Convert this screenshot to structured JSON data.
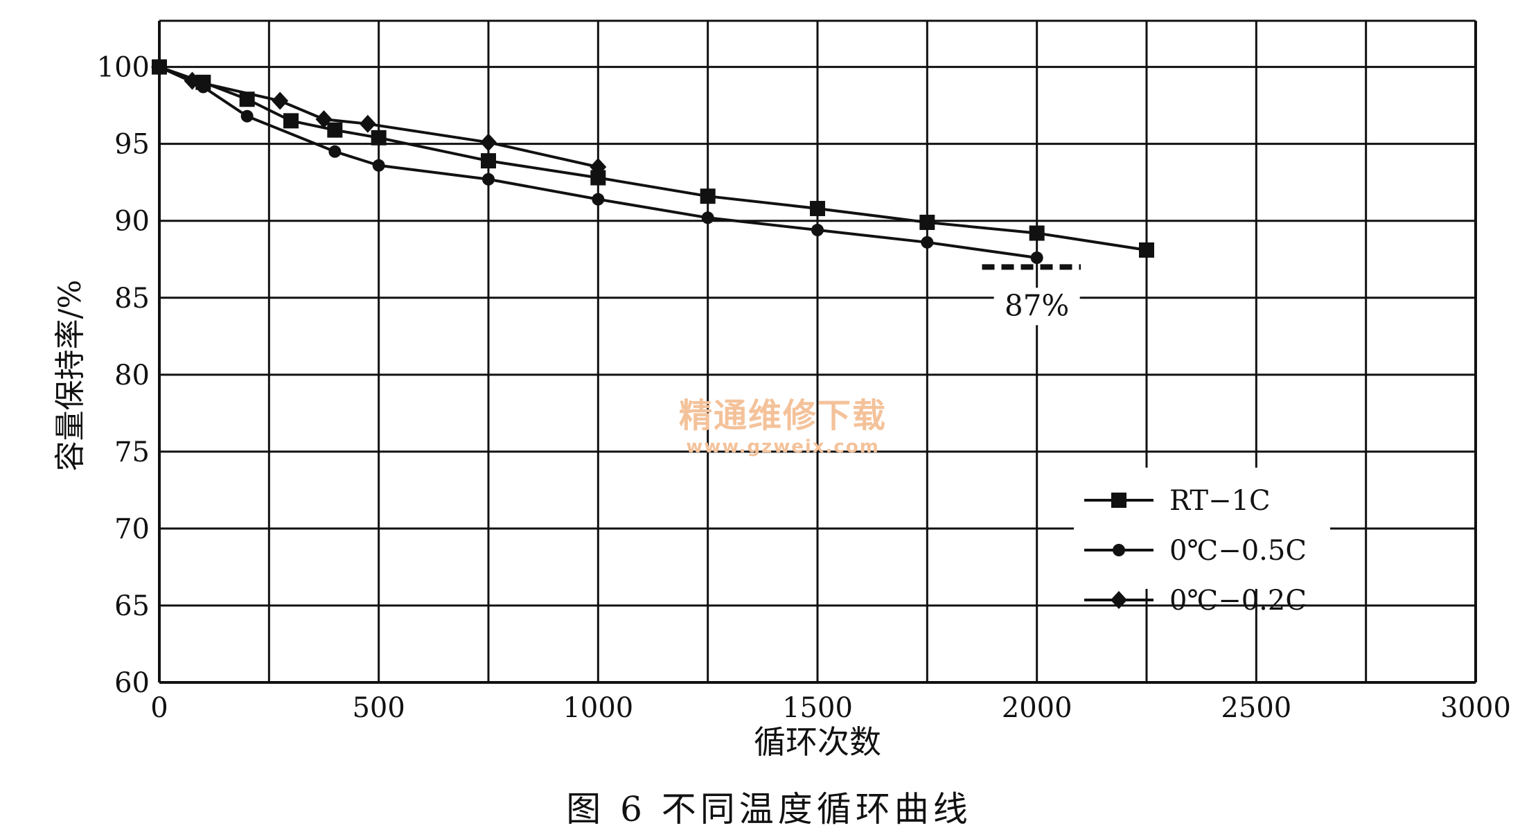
{
  "figure": {
    "caption": "图 6    不同温度循环曲线"
  },
  "watermark": {
    "title": "精通维修下载",
    "url": "www.gzweix.com"
  },
  "chart_data": {
    "type": "line",
    "xlabel": "循环次数",
    "ylabel": "容量保持率/%",
    "xlim": [
      0,
      3000
    ],
    "ylim": [
      60,
      103
    ],
    "x_ticks": [
      0,
      500,
      1000,
      1500,
      2000,
      2500,
      3000
    ],
    "y_ticks": [
      60,
      65,
      70,
      75,
      80,
      85,
      90,
      95,
      100
    ],
    "grid": true,
    "legend_position": "bottom-right",
    "series": [
      {
        "name": "RT−1C",
        "marker": "square",
        "x": [
          0,
          100,
          200,
          300,
          400,
          500,
          750,
          1000,
          1250,
          1500,
          1750,
          2000,
          2250
        ],
        "y": [
          100,
          99.0,
          97.9,
          96.5,
          95.9,
          95.4,
          93.9,
          92.8,
          91.6,
          90.8,
          89.9,
          89.2,
          88.1
        ]
      },
      {
        "name": "0℃−0.5C",
        "marker": "circle",
        "x": [
          0,
          100,
          200,
          400,
          500,
          750,
          1000,
          1250,
          1500,
          1750,
          2000
        ],
        "y": [
          100,
          98.7,
          96.8,
          94.5,
          93.6,
          92.7,
          91.4,
          90.2,
          89.4,
          88.6,
          87.6
        ]
      },
      {
        "name": "0℃−0.2C",
        "marker": "diamond",
        "x": [
          0,
          75,
          275,
          375,
          475,
          750,
          1000
        ],
        "y": [
          100,
          99.1,
          97.8,
          96.6,
          96.3,
          95.1,
          93.5
        ]
      }
    ],
    "annotation": {
      "text": "87%",
      "y": 87,
      "x_range": [
        1875,
        2100
      ]
    }
  }
}
